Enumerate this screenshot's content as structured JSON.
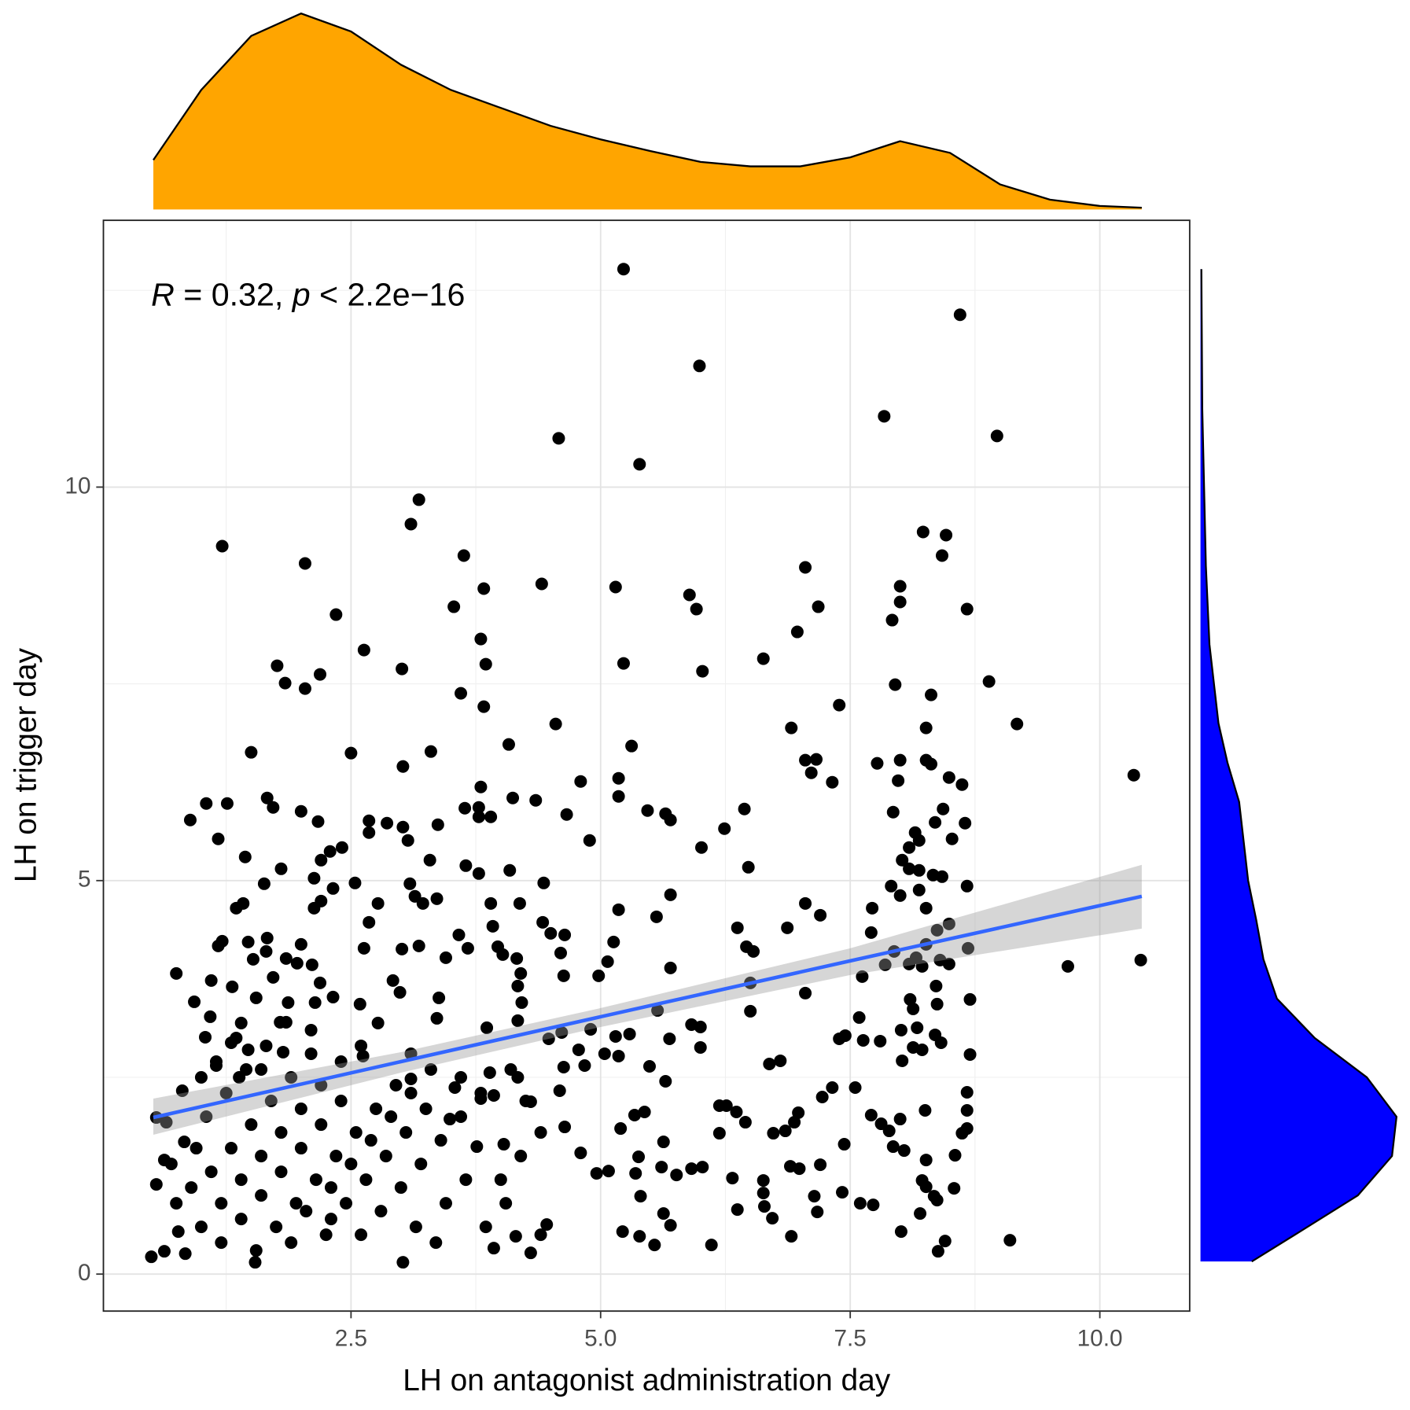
{
  "chart_data": {
    "type": "scatter",
    "x_label": "LH on antagonist administration day",
    "y_label": "LH on trigger day",
    "annotation": {
      "r_label": "R",
      "r_text": " = 0.32, ",
      "p_label": "p",
      "p_text": " < 2.2e−16"
    },
    "xlim": [
      0.02,
      10.9
    ],
    "ylim": [
      -0.47,
      13.39
    ],
    "xticks": [
      2.5,
      {
        "value": 5,
        "label": "5.0"
      },
      7.5,
      {
        "value": 10,
        "label": "10.0"
      }
    ],
    "yticks": [
      0,
      5,
      10
    ],
    "x_minor_grid": [
      1.25,
      3.75,
      6.25,
      8.75
    ],
    "y_minor_grid": [
      2.5,
      7.5,
      12.5
    ],
    "grid": true,
    "point_color": "#000000",
    "x": [
      5.23,
      8.6,
      5.99,
      7.84,
      4.58,
      8.97,
      5.39,
      3.18,
      3.1,
      1.21,
      2.04,
      8.23,
      8.46,
      8.42,
      3.63,
      7.05,
      3.83,
      4.41,
      5.15,
      5.89,
      5.96,
      8.0,
      8.0,
      7.92,
      8.67,
      7.18,
      3.53,
      2.35,
      6.97,
      3.8,
      2.63,
      3.85,
      5.23,
      6.63,
      3.01,
      1.76,
      2.19,
      1.84,
      2.04,
      6.02,
      8.89,
      7.95,
      8.31,
      3.6,
      3.83,
      7.39,
      4.55,
      9.17,
      8.26,
      6.91,
      4.08,
      5.31,
      1.5,
      2.5,
      3.3,
      7.05,
      7.16,
      7.77,
      8.0,
      8.26,
      8.31,
      3.02,
      10.34,
      7.11,
      8.49,
      7.32,
      5.18,
      4.8,
      7.98,
      8.62,
      3.8,
      5.18,
      1.05,
      1.26,
      1.66,
      1.72,
      4.12,
      4.35,
      6.44,
      2.0,
      5.47,
      5.65,
      3.78,
      3.64,
      7.93,
      8.43,
      0.89,
      2.17,
      2.68,
      2.86,
      3.02,
      3.37,
      3.78,
      3.9,
      4.66,
      5.7,
      8.65,
      8.35,
      8.15,
      6.24,
      1.17,
      2.68,
      3.07,
      8.19,
      4.89,
      8.52,
      2.41,
      2.29,
      6.01,
      8.09,
      1.44,
      2.2,
      3.29,
      8.02,
      3.65,
      6.48,
      8.09,
      8.19,
      4.09,
      1.8,
      3.78,
      8.33,
      8.42,
      2.13,
      1.63,
      2.54,
      4.43,
      3.09,
      8.67,
      7.91,
      8.19,
      2.32,
      1.42,
      8.0,
      5.7,
      3.14,
      3.36,
      2.2,
      2.77,
      3.22,
      7.05,
      1.35,
      2.13,
      3.9,
      4.19,
      8.26,
      7.72,
      5.18,
      7.2,
      5.56,
      2.68,
      6.37,
      7.71,
      6.87,
      3.92,
      4.42,
      8.49,
      8.37,
      3.58,
      4.5,
      4.64,
      1.21,
      1.47,
      1.66,
      5.13,
      8.68,
      8.26,
      2.63,
      3.01,
      3.18,
      3.97,
      2.0,
      1.65,
      1.17,
      3.67,
      6.46,
      6.53,
      7.94,
      4.02,
      8.16,
      1.52,
      3.45,
      4.16,
      4.6,
      1.85,
      5.07,
      8.4,
      8.09,
      1.96,
      9.68,
      10.41,
      8.49,
      7.85,
      8.22,
      5.7,
      2.11,
      0.75,
      4.2,
      4.63,
      4.98,
      7.62,
      1.72,
      1.1,
      2.92,
      2.19,
      6.5,
      1.31,
      4.17,
      8.36,
      2.99,
      7.05,
      0.93,
      2.32,
      1.87,
      3.38,
      8.7,
      4.21,
      8.1,
      2.59,
      8.37,
      1.55,
      2.14,
      5.57,
      6.5,
      8.13,
      1.09,
      1.4,
      3.36,
      7.59,
      4.17,
      2.77,
      1.79,
      8.17,
      8.01,
      5.91,
      6.0,
      3.86,
      4.9,
      4.61,
      1.04,
      8.35,
      5.15,
      7.45,
      7.39,
      7.63,
      7.8,
      5.69,
      5.29,
      4.48,
      8.41,
      1.3,
      6.0,
      8.22,
      8.13,
      1.47,
      1.82,
      4.78,
      5.04,
      8.7,
      2.62,
      5.18,
      8.02,
      6.8,
      6.69,
      1.15,
      4.84,
      5.49,
      4.63,
      3.89,
      1.38,
      3.1,
      4.17,
      5.65,
      7.32,
      7.55,
      8.67,
      0.81,
      4.59,
      3.93,
      7.22,
      3.54,
      3.8,
      4.3,
      6.19,
      6.26,
      8.25,
      8.67,
      6.98,
      7.71,
      5.44,
      6.36,
      5.34,
      0.55,
      0.65,
      3.49,
      6.45,
      7.81,
      8.0,
      6.94,
      4.64,
      5.2,
      8.67,
      7.89,
      8.62,
      6.19,
      6.85,
      6.73,
      0.83,
      5.63,
      7.44,
      7.93,
      8.04,
      3.76,
      4.03,
      8.55,
      8.26,
      4.8,
      0.63,
      5.38,
      5.61,
      5.91,
      6.02,
      6.9,
      6.99,
      7.2,
      4.96,
      5.08,
      5.35,
      5.76,
      6.32,
      6.63,
      0.55,
      8.22,
      8.26,
      8.54,
      8.34,
      6.63,
      5.4,
      7.14,
      7.42,
      7.6,
      7.73,
      8.37,
      6.37,
      6.64,
      7.17,
      8.2,
      5.63,
      6.72,
      5.7,
      0.77,
      8.01,
      4.46,
      5.22,
      6.91,
      5.39,
      8.45,
      9.1,
      5.54,
      6.11,
      0.63,
      0.5,
      0.84,
      1.54,
      3.02,
      4.3,
      8.38,
      3.93,
      4.15,
      1.0,
      1.2,
      1.4,
      1.6,
      1.8,
      2.0,
      2.2,
      2.4,
      1.1,
      1.3,
      1.5,
      1.7,
      1.9,
      2.1,
      2.3,
      2.5,
      2.7,
      2.9,
      3.1,
      3.3,
      1.2,
      1.4,
      1.6,
      1.8,
      2.0,
      2.2,
      2.4,
      2.6,
      2.8,
      3.0,
      3.2,
      3.4,
      3.6,
      3.8,
      4.0,
      4.2,
      4.4,
      1.05,
      1.25,
      1.45,
      1.65,
      1.85,
      2.05,
      2.25,
      2.45,
      2.65,
      2.85,
      3.05,
      3.25,
      3.45,
      3.65,
      3.85,
      4.05,
      4.25,
      0.9,
      0.95,
      1.15,
      1.35,
      1.55,
      1.75,
      1.95,
      2.15,
      2.35,
      2.55,
      2.75,
      2.95,
      3.15,
      3.35,
      1.0,
      1.6,
      2.1,
      2.6,
      3.1,
      3.6,
      4.1,
      4.4,
      0.7,
      0.75,
      1.9,
      2.3
    ],
    "y": [
      12.77,
      12.19,
      11.54,
      10.9,
      10.62,
      10.65,
      10.29,
      9.84,
      9.53,
      9.25,
      9.03,
      9.43,
      9.39,
      9.13,
      9.13,
      8.98,
      8.71,
      8.77,
      8.73,
      8.63,
      8.45,
      8.74,
      8.54,
      8.31,
      8.45,
      8.48,
      8.48,
      8.38,
      8.16,
      8.07,
      7.93,
      7.75,
      7.76,
      7.82,
      7.69,
      7.73,
      7.62,
      7.51,
      7.44,
      7.66,
      7.53,
      7.49,
      7.36,
      7.38,
      7.21,
      7.23,
      6.99,
      6.99,
      6.94,
      6.94,
      6.73,
      6.71,
      6.63,
      6.62,
      6.64,
      6.53,
      6.54,
      6.49,
      6.53,
      6.53,
      6.48,
      6.45,
      6.34,
      6.37,
      6.31,
      6.25,
      6.3,
      6.26,
      6.27,
      6.22,
      6.19,
      6.07,
      5.98,
      5.98,
      6.05,
      5.93,
      6.05,
      6.02,
      5.91,
      5.88,
      5.89,
      5.85,
      5.93,
      5.92,
      5.87,
      5.91,
      5.77,
      5.75,
      5.76,
      5.73,
      5.68,
      5.71,
      5.81,
      5.81,
      5.84,
      5.77,
      5.73,
      5.74,
      5.61,
      5.66,
      5.53,
      5.61,
      5.51,
      5.51,
      5.51,
      5.53,
      5.42,
      5.37,
      5.42,
      5.42,
      5.3,
      5.26,
      5.26,
      5.26,
      5.19,
      5.17,
      5.15,
      5.13,
      5.13,
      5.15,
      5.09,
      5.07,
      5.05,
      5.03,
      4.96,
      4.97,
      4.97,
      4.96,
      4.93,
      4.93,
      4.88,
      4.9,
      4.71,
      4.81,
      4.82,
      4.8,
      4.77,
      4.74,
      4.71,
      4.71,
      4.71,
      4.65,
      4.65,
      4.71,
      4.71,
      4.65,
      4.65,
      4.63,
      4.56,
      4.54,
      4.47,
      4.4,
      4.34,
      4.4,
      4.42,
      4.47,
      4.45,
      4.37,
      4.31,
      4.33,
      4.31,
      4.23,
      4.22,
      4.27,
      4.22,
      4.14,
      4.19,
      4.14,
      4.13,
      4.17,
      4.16,
      4.19,
      4.1,
      4.17,
      4.14,
      4.16,
      4.1,
      4.1,
      4.06,
      4.02,
      4.0,
      4.02,
      4.01,
      4.08,
      4.01,
      3.97,
      3.99,
      3.94,
      3.95,
      3.91,
      3.99,
      3.94,
      3.93,
      3.91,
      3.89,
      3.93,
      3.82,
      3.82,
      3.79,
      3.79,
      3.78,
      3.77,
      3.73,
      3.73,
      3.7,
      3.7,
      3.65,
      3.66,
      3.66,
      3.58,
      3.57,
      3.46,
      3.52,
      3.45,
      3.51,
      3.49,
      3.45,
      3.49,
      3.43,
      3.43,
      3.51,
      3.45,
      3.35,
      3.34,
      3.37,
      3.27,
      3.19,
      3.25,
      3.26,
      3.22,
      3.19,
      3.2,
      3.13,
      3.1,
      3.17,
      3.14,
      3.13,
      3.11,
      3.07,
      3.01,
      3.04,
      3.02,
      3.03,
      2.99,
      2.97,
      2.96,
      2.99,
      3.05,
      2.99,
      2.94,
      2.94,
      2.88,
      2.85,
      2.88,
      2.85,
      2.82,
      2.85,
      2.8,
      2.79,
      2.77,
      2.77,
      2.71,
      2.71,
      2.67,
      2.65,
      2.65,
      2.64,
      2.63,
      2.56,
      2.5,
      2.48,
      2.5,
      2.45,
      2.37,
      2.37,
      2.31,
      2.33,
      2.33,
      2.27,
      2.25,
      2.37,
      2.23,
      2.19,
      2.14,
      2.14,
      2.08,
      2.08,
      2.05,
      2.02,
      2.06,
      2.06,
      2.02,
      1.99,
      1.93,
      1.97,
      1.93,
      1.91,
      1.97,
      1.93,
      1.87,
      1.85,
      1.85,
      1.82,
      1.79,
      1.79,
      1.82,
      1.79,
      1.68,
      1.68,
      1.65,
      1.62,
      1.57,
      1.62,
      1.65,
      1.51,
      1.45,
      1.54,
      1.45,
      1.49,
      1.36,
      1.34,
      1.36,
      1.37,
      1.34,
      1.39,
      1.28,
      1.31,
      1.28,
      1.26,
      1.22,
      1.19,
      1.14,
      1.19,
      1.11,
      1.09,
      0.99,
      1.03,
      0.99,
      0.99,
      1.04,
      0.9,
      0.88,
      0.94,
      0.82,
      0.86,
      0.79,
      0.77,
      0.77,
      0.71,
      0.62,
      0.54,
      0.54,
      0.63,
      0.54,
      0.48,
      0.48,
      0.42,
      0.43,
      0.37,
      0.37,
      0.29,
      0.22,
      0.26,
      0.15,
      0.15,
      0.27,
      0.29,
      0.33,
      0.48,
      0.6,
      0.9,
      1.2,
      1.5,
      1.8,
      2.1,
      2.4,
      2.7,
      1.3,
      1.6,
      1.9,
      2.2,
      2.5,
      2.8,
      1.1,
      1.4,
      1.7,
      2.0,
      2.3,
      2.6,
      0.4,
      0.7,
      1.0,
      1.3,
      1.6,
      1.9,
      2.2,
      0.5,
      0.8,
      1.1,
      1.4,
      1.7,
      2.0,
      2.3,
      1.2,
      1.5,
      1.8,
      2.0,
      2.3,
      2.6,
      2.9,
      3.2,
      0.8,
      0.5,
      0.9,
      1.2,
      1.5,
      1.8,
      2.1,
      0.9,
      1.2,
      0.6,
      0.9,
      2.2,
      1.1,
      1.6,
      2.7,
      3.0,
      0.3,
      0.6,
      0.9,
      1.2,
      1.5,
      1.8,
      2.1,
      2.4,
      0.6,
      0.4,
      2.5,
      2.6,
      3.1,
      2.9,
      2.8,
      2.5,
      2.6,
      0.5,
      1.4,
      0.9,
      0.4,
      0.7
    ],
    "trend": {
      "color": "#3366ff",
      "band_color": "#999999",
      "x": [
        0.52,
        3,
        5,
        7.5,
        10.42
      ],
      "y": [
        1.99,
        2.7,
        3.27,
        3.98,
        4.8
      ],
      "ci_low": [
        1.77,
        2.56,
        3.14,
        3.8,
        4.39
      ],
      "ci_high": [
        2.23,
        2.82,
        3.38,
        4.14,
        5.2
      ]
    },
    "x_density": {
      "color": "#ffa500",
      "x": [
        0.52,
        1.0,
        1.5,
        2.0,
        2.5,
        3.0,
        3.5,
        4.0,
        4.5,
        5.0,
        5.5,
        6.0,
        6.5,
        7.0,
        7.5,
        8.0,
        8.5,
        9.0,
        9.5,
        10.0,
        10.42
      ],
      "density": [
        0.055,
        0.133,
        0.193,
        0.218,
        0.198,
        0.161,
        0.133,
        0.113,
        0.093,
        0.078,
        0.065,
        0.053,
        0.048,
        0.048,
        0.058,
        0.076,
        0.063,
        0.028,
        0.011,
        0.004,
        0.002
      ]
    },
    "y_density": {
      "color": "#0000ff",
      "y": [
        0.16,
        0.5,
        1.0,
        1.5,
        2.0,
        2.5,
        3.0,
        3.5,
        4.0,
        4.5,
        5.0,
        5.5,
        6.0,
        6.5,
        7.0,
        8.0,
        9.0,
        10.0,
        11.0,
        12.77
      ],
      "density": [
        0.057,
        0.105,
        0.175,
        0.213,
        0.218,
        0.185,
        0.127,
        0.085,
        0.07,
        0.062,
        0.053,
        0.048,
        0.043,
        0.03,
        0.02,
        0.01,
        0.006,
        0.004,
        0.002,
        0.001
      ]
    }
  }
}
